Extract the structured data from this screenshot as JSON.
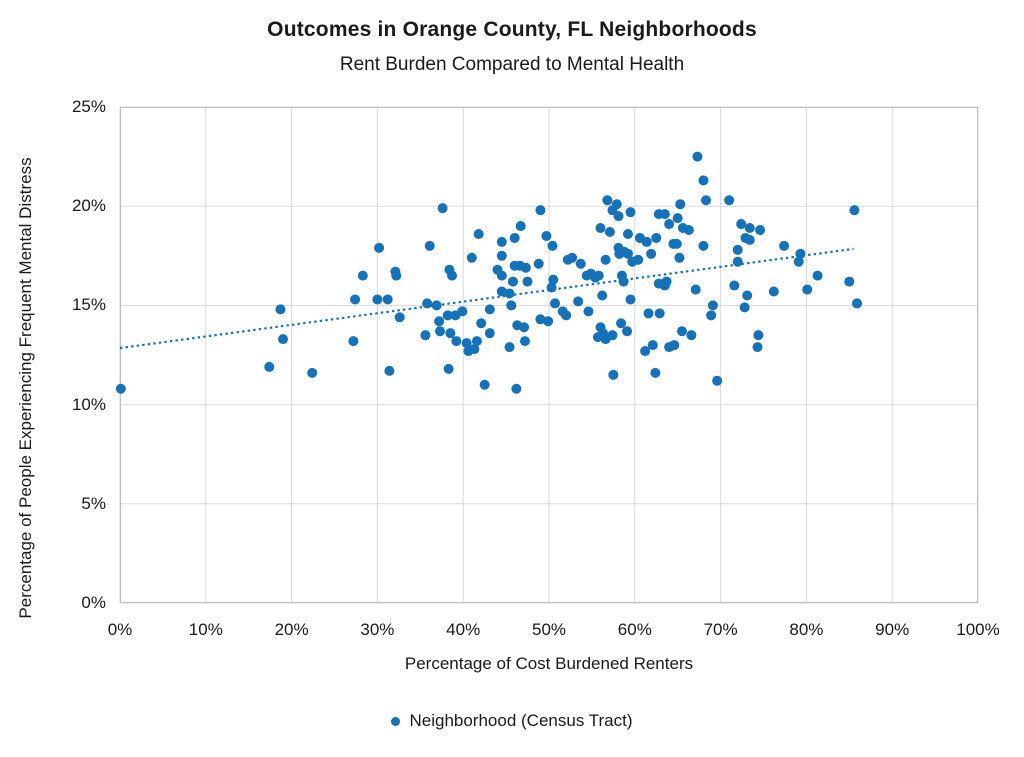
{
  "title": "Outcomes in Orange County, FL Neighborhoods",
  "subtitle": "Rent Burden Compared to Mental Health",
  "legend": {
    "label": "Neighborhood (Census Tract)"
  },
  "colors": {
    "dot": "#1572B8",
    "trendline": "#1572B8",
    "gridline": "#D9D9D9",
    "plot_border": "#BFBFBF",
    "text": "#1A1A1A",
    "background": "#FFFFFF"
  },
  "chart_data": {
    "type": "scatter",
    "title": "Outcomes in Orange County, FL Neighborhoods",
    "subtitle": "Rent Burden Compared to Mental Health",
    "xlabel": "Percentage of Cost Burdened Renters",
    "ylabel": "Percentage of People Experiencing Frequent Mental Distress",
    "xlim": [
      0,
      100
    ],
    "ylim": [
      0,
      25
    ],
    "grid": true,
    "legend_position": "bottom",
    "x_ticks": [
      {
        "v": 0,
        "label": "0%"
      },
      {
        "v": 10,
        "label": "10%"
      },
      {
        "v": 20,
        "label": "20%"
      },
      {
        "v": 30,
        "label": "30%"
      },
      {
        "v": 40,
        "label": "40%"
      },
      {
        "v": 50,
        "label": "50%"
      },
      {
        "v": 60,
        "label": "60%"
      },
      {
        "v": 70,
        "label": "70%"
      },
      {
        "v": 80,
        "label": "80%"
      },
      {
        "v": 90,
        "label": "90%"
      },
      {
        "v": 100,
        "label": "100%"
      }
    ],
    "y_ticks": [
      {
        "v": 0,
        "label": "0%"
      },
      {
        "v": 5,
        "label": "5%"
      },
      {
        "v": 10,
        "label": "10%"
      },
      {
        "v": 15,
        "label": "15%"
      },
      {
        "v": 20,
        "label": "20%"
      },
      {
        "v": 25,
        "label": "25%"
      }
    ],
    "series": [
      {
        "name": "Neighborhood (Census Tract)",
        "marker": "circle",
        "points": [
          [
            0.1,
            10.8
          ],
          [
            17.4,
            11.9
          ],
          [
            18.7,
            14.8
          ],
          [
            19.0,
            13.3
          ],
          [
            22.4,
            11.6
          ],
          [
            27.2,
            13.2
          ],
          [
            27.4,
            15.3
          ],
          [
            28.3,
            16.5
          ],
          [
            30.0,
            15.3
          ],
          [
            30.2,
            17.9
          ],
          [
            31.2,
            15.3
          ],
          [
            31.4,
            11.7
          ],
          [
            32.1,
            16.7
          ],
          [
            32.2,
            16.5
          ],
          [
            32.6,
            14.4
          ],
          [
            35.6,
            13.5
          ],
          [
            35.8,
            15.1
          ],
          [
            36.1,
            18.0
          ],
          [
            36.9,
            15.0
          ],
          [
            37.2,
            14.2
          ],
          [
            37.3,
            13.7
          ],
          [
            37.6,
            19.9
          ],
          [
            38.2,
            14.5
          ],
          [
            38.3,
            11.8
          ],
          [
            38.4,
            16.8
          ],
          [
            38.5,
            13.6
          ],
          [
            38.7,
            16.5
          ],
          [
            39.1,
            14.5
          ],
          [
            39.2,
            13.2
          ],
          [
            39.9,
            14.7
          ],
          [
            40.4,
            13.1
          ],
          [
            40.6,
            12.7
          ],
          [
            41.0,
            17.4
          ],
          [
            41.3,
            12.8
          ],
          [
            41.6,
            13.2
          ],
          [
            41.8,
            18.6
          ],
          [
            42.1,
            14.1
          ],
          [
            42.5,
            11.0
          ],
          [
            43.1,
            14.8
          ],
          [
            43.1,
            13.6
          ],
          [
            44.0,
            16.8
          ],
          [
            44.5,
            18.2
          ],
          [
            44.5,
            17.5
          ],
          [
            44.5,
            16.5
          ],
          [
            44.5,
            15.7
          ],
          [
            45.4,
            15.6
          ],
          [
            45.6,
            15.0
          ],
          [
            45.4,
            12.9
          ],
          [
            45.8,
            16.2
          ],
          [
            46.0,
            18.4
          ],
          [
            46.0,
            17.0
          ],
          [
            46.2,
            10.8
          ],
          [
            46.3,
            14.0
          ],
          [
            46.6,
            17.0
          ],
          [
            46.7,
            19.0
          ],
          [
            47.1,
            13.9
          ],
          [
            47.2,
            13.2
          ],
          [
            47.3,
            16.9
          ],
          [
            47.5,
            16.2
          ],
          [
            48.8,
            17.1
          ],
          [
            49.0,
            19.8
          ],
          [
            49.0,
            14.3
          ],
          [
            49.7,
            18.5
          ],
          [
            49.9,
            14.2
          ],
          [
            50.3,
            15.9
          ],
          [
            50.4,
            18.0
          ],
          [
            50.5,
            16.3
          ],
          [
            50.7,
            15.1
          ],
          [
            51.6,
            14.7
          ],
          [
            52.0,
            14.5
          ],
          [
            52.2,
            17.3
          ],
          [
            52.7,
            17.4
          ],
          [
            53.4,
            15.2
          ],
          [
            53.7,
            17.1
          ],
          [
            54.4,
            16.5
          ],
          [
            54.6,
            14.7
          ],
          [
            54.9,
            16.6
          ],
          [
            55.4,
            16.4
          ],
          [
            55.7,
            13.4
          ],
          [
            55.8,
            16.5
          ],
          [
            56.0,
            18.9
          ],
          [
            56.0,
            13.9
          ],
          [
            56.2,
            15.5
          ],
          [
            56.3,
            13.6
          ],
          [
            56.6,
            17.3
          ],
          [
            56.6,
            13.3
          ],
          [
            56.8,
            20.3
          ],
          [
            57.1,
            18.7
          ],
          [
            57.4,
            19.8
          ],
          [
            57.4,
            13.5
          ],
          [
            57.5,
            11.5
          ],
          [
            57.9,
            20.1
          ],
          [
            58.1,
            19.5
          ],
          [
            58.1,
            17.9
          ],
          [
            58.2,
            17.6
          ],
          [
            58.4,
            14.1
          ],
          [
            58.5,
            16.5
          ],
          [
            58.7,
            16.2
          ],
          [
            58.8,
            17.7
          ],
          [
            59.1,
            13.7
          ],
          [
            59.2,
            18.6
          ],
          [
            59.2,
            17.6
          ],
          [
            59.5,
            19.7
          ],
          [
            59.5,
            15.3
          ],
          [
            59.7,
            17.2
          ],
          [
            60.4,
            17.3
          ],
          [
            60.6,
            18.4
          ],
          [
            61.2,
            12.7
          ],
          [
            61.4,
            18.2
          ],
          [
            61.6,
            14.6
          ],
          [
            61.9,
            17.6
          ],
          [
            62.1,
            13.0
          ],
          [
            62.4,
            11.6
          ],
          [
            62.5,
            18.4
          ],
          [
            62.8,
            19.6
          ],
          [
            62.8,
            16.1
          ],
          [
            62.9,
            14.6
          ],
          [
            63.5,
            19.6
          ],
          [
            63.5,
            16.0
          ],
          [
            63.7,
            16.2
          ],
          [
            64.0,
            19.1
          ],
          [
            64.0,
            12.9
          ],
          [
            64.5,
            18.1
          ],
          [
            64.6,
            13.0
          ],
          [
            64.9,
            18.1
          ],
          [
            65.0,
            19.4
          ],
          [
            65.2,
            17.4
          ],
          [
            65.3,
            20.1
          ],
          [
            65.5,
            13.7
          ],
          [
            65.6,
            18.9
          ],
          [
            66.3,
            18.8
          ],
          [
            66.6,
            13.5
          ],
          [
            67.1,
            15.8
          ],
          [
            67.3,
            22.5
          ],
          [
            68.0,
            21.3
          ],
          [
            68.0,
            18.0
          ],
          [
            68.3,
            20.3
          ],
          [
            68.9,
            14.5
          ],
          [
            69.1,
            15.0
          ],
          [
            69.6,
            11.2
          ],
          [
            71.0,
            20.3
          ],
          [
            71.6,
            16.0
          ],
          [
            72.0,
            17.8
          ],
          [
            72.0,
            17.2
          ],
          [
            72.4,
            19.1
          ],
          [
            72.8,
            14.9
          ],
          [
            72.9,
            18.4
          ],
          [
            73.1,
            15.5
          ],
          [
            73.4,
            18.9
          ],
          [
            73.4,
            18.3
          ],
          [
            74.3,
            12.9
          ],
          [
            74.4,
            13.5
          ],
          [
            74.6,
            18.8
          ],
          [
            76.2,
            15.7
          ],
          [
            77.4,
            18.0
          ],
          [
            79.1,
            17.2
          ],
          [
            79.3,
            17.6
          ],
          [
            80.1,
            15.8
          ],
          [
            81.3,
            16.5
          ],
          [
            85.0,
            16.2
          ],
          [
            85.6,
            19.8
          ],
          [
            85.9,
            15.1
          ]
        ]
      }
    ],
    "trendline": {
      "style": "dotted",
      "x1": 0,
      "y1": 12.85,
      "x2": 85.5,
      "y2": 17.85
    },
    "legend_label": "Neighborhood (Census Tract)"
  }
}
